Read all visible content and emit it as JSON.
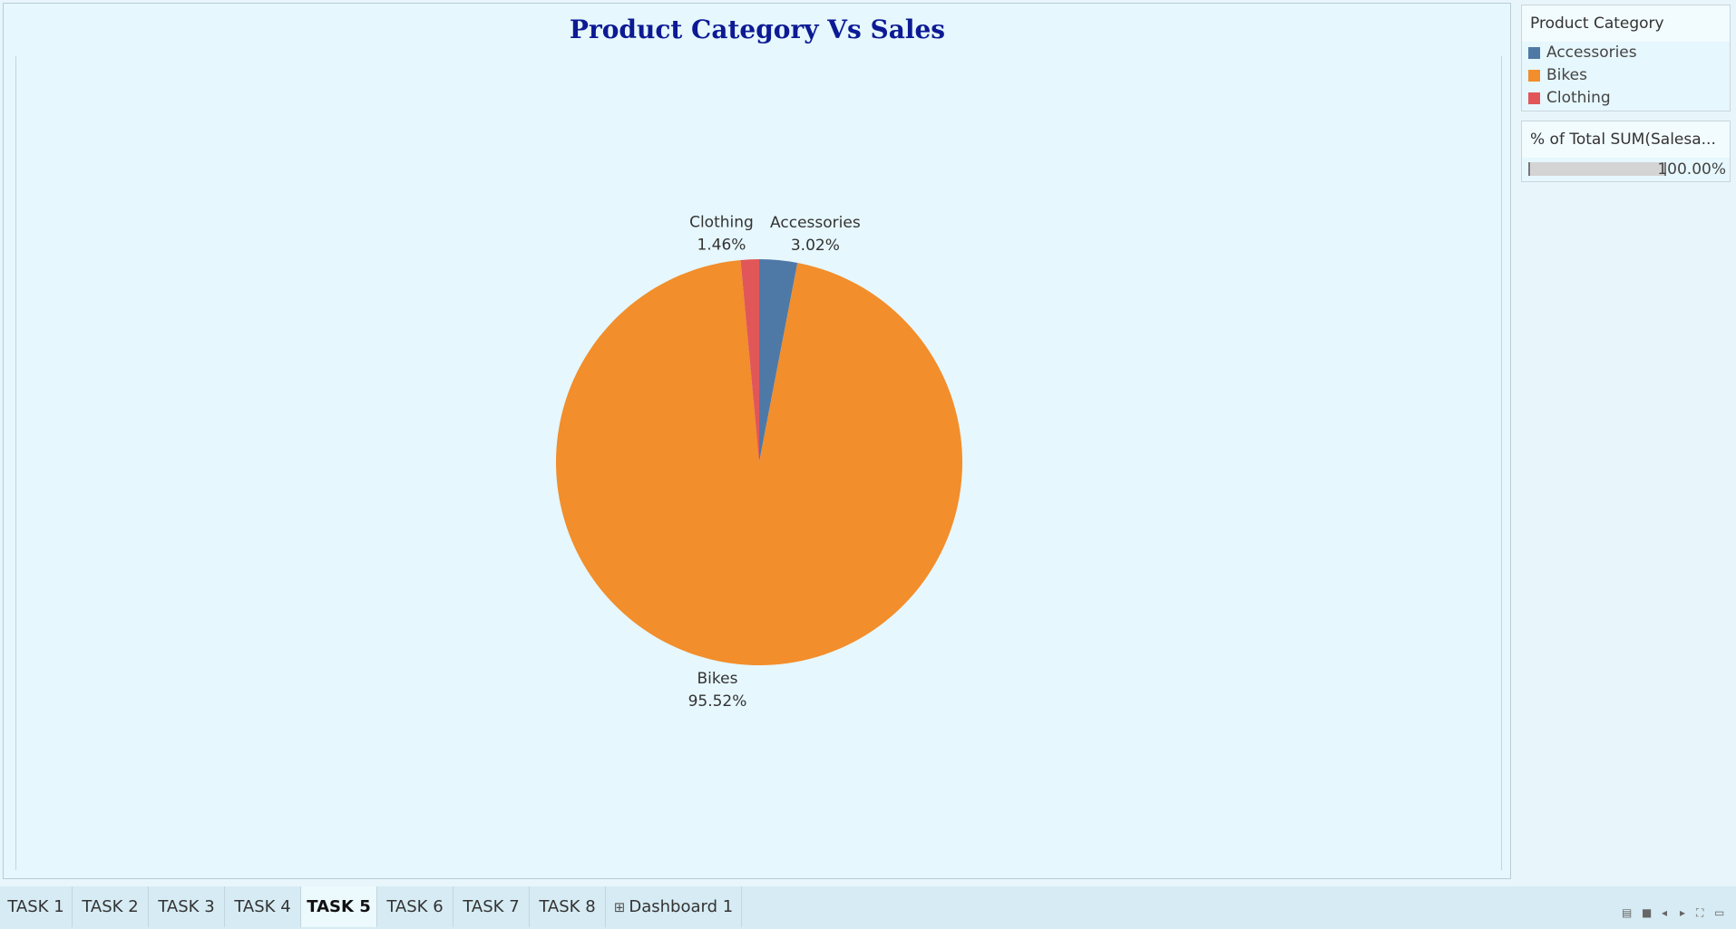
{
  "chart_data": {
    "type": "pie",
    "title": "Product Category Vs Sales",
    "slices": [
      {
        "label": "Accessories",
        "value": 3.02,
        "display": "3.02%",
        "color": "#4e79a7"
      },
      {
        "label": "Bikes",
        "value": 95.52,
        "display": "95.52%",
        "color": "#f28e2b"
      },
      {
        "label": "Clothing",
        "value": 1.46,
        "display": "1.46%",
        "color": "#e15759"
      }
    ]
  },
  "legend": {
    "title": "Product Category",
    "items": [
      {
        "label": "Accessories",
        "color": "#4e79a7"
      },
      {
        "label": "Bikes",
        "color": "#f28e2b"
      },
      {
        "label": "Clothing",
        "color": "#e15759"
      }
    ]
  },
  "filter": {
    "title": "% of Total SUM(Salesa...",
    "value_label": "100.00%",
    "value": 100
  },
  "tabs": [
    {
      "label": "TASK 1",
      "active": false
    },
    {
      "label": "TASK 2",
      "active": false
    },
    {
      "label": "TASK 3",
      "active": false
    },
    {
      "label": "TASK 4",
      "active": false
    },
    {
      "label": "TASK 5",
      "active": true
    },
    {
      "label": "TASK 6",
      "active": false
    },
    {
      "label": "TASK 7",
      "active": false
    },
    {
      "label": "TASK 8",
      "active": false
    },
    {
      "label": "Dashboard 1",
      "active": false,
      "icon": "dashboard-grid-icon"
    }
  ],
  "nav_icons": [
    "show-filmstrip-icon",
    "show-tabs-icon",
    "previous-sheet-icon",
    "next-sheet-icon",
    "fullscreen-icon",
    "presentation-icon"
  ]
}
